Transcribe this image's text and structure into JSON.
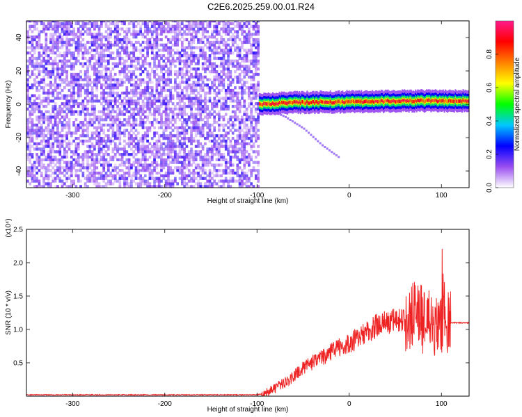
{
  "title": "C2E6.2025.259.00.01.R24",
  "chart_data": [
    {
      "type": "heatmap",
      "xlabel": "Height of straight line (km)",
      "ylabel": "Frequency (Hz)",
      "xlim": [
        -350,
        130
      ],
      "ylim": [
        -50,
        50
      ],
      "x_ticks": [
        -300,
        -200,
        -100,
        0,
        100
      ],
      "y_ticks": [
        -40,
        -20,
        0,
        20,
        40
      ],
      "colorbar": {
        "label": "Normalized spectral amplitude",
        "range": [
          0.0,
          1.0
        ],
        "ticks": [
          "0.0",
          "0.2",
          "0.4",
          "0.6",
          "0.8"
        ],
        "tick_values": [
          0.0,
          0.2,
          0.4,
          0.6,
          0.8
        ],
        "colors": [
          "#ffffff",
          "#9a4ef0",
          "#0000ff",
          "#00c8ff",
          "#00ff00",
          "#ffff00",
          "#ff8000",
          "#ff0000",
          "#ff1a8c"
        ]
      },
      "regions": [
        {
          "name": "noise",
          "x_range": [
            -350,
            -98
          ],
          "y_range": [
            -50,
            50
          ],
          "amplitude": 0.1
        },
        {
          "name": "signal_band",
          "x_range": [
            -98,
            130
          ],
          "center_freq": [
            [
              -98,
              0
            ],
            [
              -60,
              1
            ],
            [
              0,
              1.5
            ],
            [
              60,
              2
            ],
            [
              130,
              2
            ]
          ],
          "peak_amplitude": 0.95
        },
        {
          "name": "descending_trace",
          "points": [
            [
              -90,
              -3
            ],
            [
              -70,
              -8
            ],
            [
              -50,
              -15
            ],
            [
              -30,
              -25
            ],
            [
              -10,
              -33
            ]
          ],
          "amplitude": 0.15
        }
      ]
    },
    {
      "type": "line",
      "xlabel": "Height of straight line (km)",
      "ylabel": "SNR (10 * v/v)",
      "scale_label": "(x10⁴)",
      "xlim": [
        -350,
        130
      ],
      "ylim": [
        0,
        2.5
      ],
      "x_ticks": [
        -300,
        -200,
        -100,
        0,
        100
      ],
      "y_ticks": [
        0.5,
        1.0,
        1.5,
        2.0,
        2.5
      ],
      "color": "#ee2222",
      "series": [
        {
          "x": [
            -350,
            -300,
            -200,
            -100,
            -90,
            -80,
            -70,
            -60,
            -50,
            -40,
            -30,
            -20,
            -10,
            0,
            10,
            20,
            30,
            40,
            50,
            60,
            65,
            70,
            75,
            80,
            85,
            90,
            95,
            100,
            103,
            106,
            110,
            120,
            130
          ],
          "y": [
            0.02,
            0.02,
            0.02,
            0.02,
            0.05,
            0.12,
            0.2,
            0.3,
            0.42,
            0.5,
            0.58,
            0.66,
            0.73,
            0.78,
            0.88,
            0.98,
            1.05,
            1.1,
            1.13,
            1.15,
            1.18,
            1.25,
            1.2,
            1.15,
            1.1,
            1.05,
            1.0,
            1.0,
            1.3,
            1.1,
            1.1,
            1.1,
            1.1
          ]
        }
      ]
    }
  ]
}
